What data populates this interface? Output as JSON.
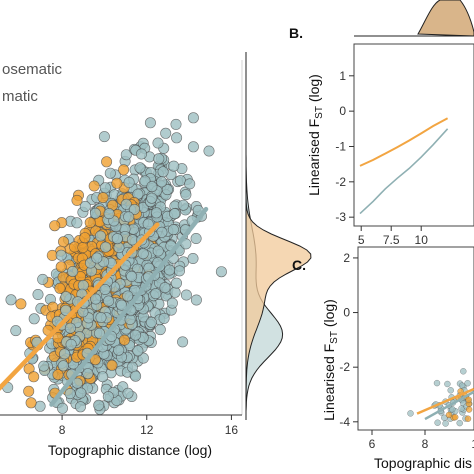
{
  "colors": {
    "aposematic": "#F0A030",
    "nonaposematic": "#9DBFC2",
    "aposematic_line": "#F2A542",
    "nonaposematic_line": "#8FB0B3",
    "aposematic_density": "#F2C99A",
    "nonaposematic_density": "#C5D9DA"
  },
  "legend": {
    "item1": "osematic",
    "item2": "matic"
  },
  "panels": {
    "b_label": "B.",
    "c_label": "C."
  },
  "chart_data": [
    {
      "panel": "A",
      "type": "scatter",
      "title": "",
      "xlabel": "Topographic distance (log)",
      "ylabel": "",
      "xticks": [
        "8",
        "12",
        "16"
      ],
      "xlim": [
        4.5,
        16.5
      ],
      "ylim": [
        -5,
        2
      ],
      "grid": false,
      "series": [
        {
          "name": "osematic",
          "role": "aposematic",
          "trend": [
            [
              5,
              -4.4
            ],
            [
              12.5,
              -1.2
            ]
          ],
          "cloud_center_x": 9.2,
          "cloud_spread_x": 1.9,
          "cloud_slope": 0.38,
          "cloud_intercept": -6.0,
          "cloud_spread_y": 0.75,
          "n_points": 300
        },
        {
          "name": "matic",
          "role": "nonaposematic",
          "trend": [
            [
              7.5,
              -4.7
            ],
            [
              14.8,
              -0.9
            ]
          ],
          "cloud_center_x": 10.6,
          "cloud_spread_x": 2.5,
          "cloud_slope": 0.42,
          "cloud_intercept": -6.8,
          "cloud_spread_y": 0.95,
          "n_points": 1250
        }
      ]
    },
    {
      "panel": "B",
      "type": "line",
      "title": "",
      "xlabel": "",
      "ylabel": "Linearised FST (log)",
      "xticks": [
        "5",
        "7.5",
        "10"
      ],
      "yticks": [
        "-3",
        "-2",
        "-1",
        "0",
        "1"
      ],
      "xlim": [
        4.4,
        14.4
      ],
      "ylim": [
        -3.25,
        1.9
      ],
      "grid": false,
      "series": [
        {
          "name": "",
          "role": "aposematic",
          "x": [
            4.9,
            6.0,
            7.0,
            8.0,
            9.0,
            10.0,
            11.0,
            12.2
          ],
          "y": [
            -1.55,
            -1.38,
            -1.2,
            -1.02,
            -0.83,
            -0.63,
            -0.42,
            -0.2
          ]
        },
        {
          "name": "",
          "role": "nonaposematic",
          "x": [
            4.9,
            6.0,
            7.0,
            8.0,
            9.0,
            10.0,
            11.0,
            12.2
          ],
          "y": [
            -2.9,
            -2.55,
            -2.2,
            -1.9,
            -1.62,
            -1.3,
            -0.95,
            -0.5
          ]
        }
      ]
    },
    {
      "panel": "C",
      "type": "scatter",
      "title": "",
      "xlabel": "Topographic dis",
      "ylabel": "Linearised FST (log)",
      "xticks": [
        "6",
        "8",
        "10"
      ],
      "yticks": [
        "2",
        "0",
        "-2",
        "-4"
      ],
      "xlim": [
        5,
        11.5
      ],
      "ylim": [
        -4.3,
        2.4
      ],
      "grid": false,
      "series": [
        {
          "name": "",
          "role": "aposematic",
          "trend": [
            [
              7.7,
              -3.7
            ],
            [
              11.5,
              -2.8
            ]
          ],
          "n_points": 35
        },
        {
          "name": "",
          "role": "nonaposematic",
          "trend": [
            [
              8.0,
              -3.9
            ],
            [
              11.5,
              -2.9
            ]
          ],
          "n_points": 110
        }
      ]
    }
  ]
}
